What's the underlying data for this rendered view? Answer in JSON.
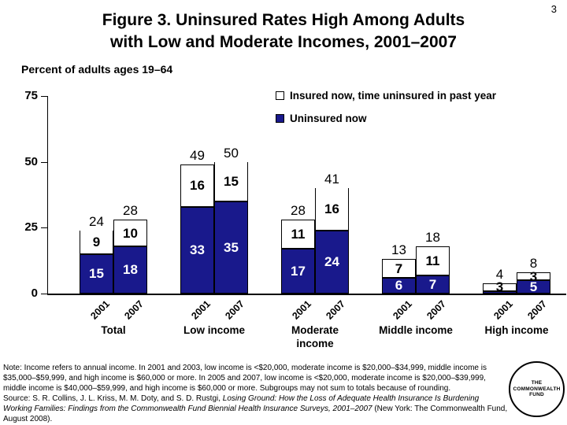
{
  "page": {
    "slide_number": "3",
    "background": "#ffffff"
  },
  "title": {
    "line1": "Figure 3. Uninsured Rates High Among Adults",
    "line2": "with Low and Moderate Incomes, 2001–2007"
  },
  "subtitle": "Percent of adults ages 19–64",
  "colors": {
    "navy": "#19198C",
    "black": "#000000",
    "white": "#ffffff"
  },
  "legend": [
    {
      "label": "Insured now, time uninsured in past year",
      "swatch": "white"
    },
    {
      "label": "Uninsured now",
      "swatch": "navy"
    }
  ],
  "chart_data": {
    "type": "bar",
    "stacked": true,
    "title": "Figure 3. Uninsured Rates High Among Adults with Low and Moderate Incomes, 2001–2007",
    "ylabel": "Percent of adults ages 19–64",
    "xlabel": "",
    "ylim": [
      0,
      75
    ],
    "yticks": [
      0,
      25,
      50,
      75
    ],
    "grid": false,
    "legend_position": "top-right",
    "series_names": [
      "Uninsured now",
      "Insured now, time uninsured in past year"
    ],
    "categories": [
      "Total",
      "Low income",
      "Moderate income",
      "Middle income",
      "High income"
    ],
    "years": [
      "2001",
      "2007"
    ],
    "groups": [
      {
        "label": "Total",
        "bars": [
          {
            "year": "2001",
            "uninsured_now": 15,
            "time_uninsured": 9,
            "total_label": "24",
            "open_top": true,
            "show_blue_label": true
          },
          {
            "year": "2007",
            "uninsured_now": 18,
            "time_uninsured": 10,
            "total_label": "28",
            "open_top": false,
            "show_blue_label": true
          }
        ]
      },
      {
        "label": "Low income",
        "bars": [
          {
            "year": "2001",
            "uninsured_now": 33,
            "time_uninsured": 16,
            "total_label": "49",
            "open_top": false,
            "show_blue_label": true
          },
          {
            "year": "2007",
            "uninsured_now": 35,
            "time_uninsured": 15,
            "total_label": "50",
            "open_top": true,
            "show_blue_label": true
          }
        ]
      },
      {
        "label": "Moderate income",
        "bars": [
          {
            "year": "2001",
            "uninsured_now": 17,
            "time_uninsured": 11,
            "total_label": "28",
            "open_top": false,
            "show_blue_label": true
          },
          {
            "year": "2007",
            "uninsured_now": 24,
            "time_uninsured": 16,
            "total_label": "41",
            "open_top": true,
            "show_blue_label": true
          }
        ]
      },
      {
        "label": "Middle income",
        "bars": [
          {
            "year": "2001",
            "uninsured_now": 6,
            "time_uninsured": 7,
            "total_label": "13",
            "open_top": false,
            "show_blue_label": true
          },
          {
            "year": "2007",
            "uninsured_now": 7,
            "time_uninsured": 11,
            "total_label": "18",
            "open_top": false,
            "show_blue_label": true
          }
        ]
      },
      {
        "label": "High income",
        "bars": [
          {
            "year": "2001",
            "uninsured_now": 1,
            "time_uninsured": 3,
            "total_label": "4",
            "open_top": false,
            "show_blue_label": false
          },
          {
            "year": "2007",
            "uninsured_now": 5,
            "time_uninsured": 3,
            "total_label": "8",
            "open_top": false,
            "show_blue_label": true
          }
        ]
      }
    ]
  },
  "note": {
    "body": "Note: Income refers to annual income. In 2001 and 2003, low income is <$20,000, moderate income is $20,000–$34,999, middle income is $35,000–$59,999, and high income is $60,000 or more. In 2005 and 2007, low income is <$20,000, moderate income is $20,000–$39,999, middle income is $40,000–$59,999, and high income is $60,000 or more. Subgroups may not sum to totals because of rounding.",
    "source_prefix": "Source: S. R. Collins, J. L. Kriss, M. M. Doty, and S. D. Rustgi, ",
    "source_italic": "Losing Ground: How the Loss of Adequate Health Insurance Is Burdening Working Families: Findings from the Commonwealth Fund Biennial Health Insurance Surveys, 2001–2007",
    "source_suffix": " (New York: The Commonwealth Fund, August 2008)."
  },
  "logo": {
    "line1": "THE",
    "line2": "COMMONWEALTH",
    "line3": "FUND"
  }
}
